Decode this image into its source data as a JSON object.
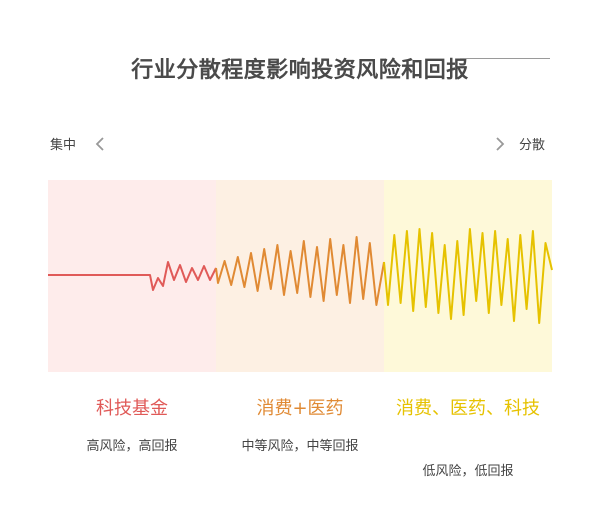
{
  "title": "行业分散程度影响投资风险和回报",
  "axis": {
    "left_label": "集中",
    "right_label": "分散",
    "left_icon": "chevron-left-icon",
    "right_icon": "chevron-right-icon"
  },
  "segments": [
    {
      "name": "科技基金",
      "desc": "高风险，高回报",
      "color": "#e05a58",
      "bg": "#feeceb"
    },
    {
      "name": "消费+医药",
      "desc": "中等风险，中等回报",
      "color": "#e08a34",
      "bg": "#fdf0e3"
    },
    {
      "name": "消费、医药、科技",
      "desc": "低风险，低回报",
      "color": "#e6c200",
      "bg": "#fef9d9"
    }
  ]
}
